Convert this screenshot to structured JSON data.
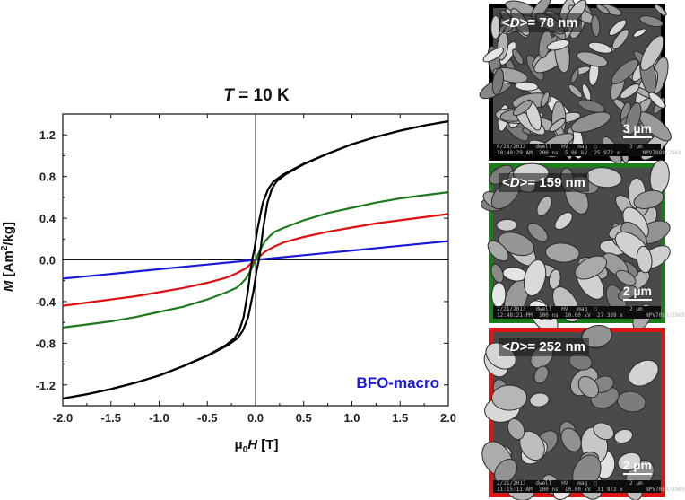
{
  "chart_data": {
    "type": "line",
    "title_symbol": "T",
    "title_rest": " = 10 K",
    "xlabel_prefix": "μ",
    "xlabel_sub": "0",
    "xlabel_symbol": "H",
    "xlabel_unit": " [T]",
    "ylabel_symbol": "M",
    "ylabel_unit_a": " [Am",
    "ylabel_sup": "2",
    "ylabel_unit_b": "/kg]",
    "xlim": [
      -2.0,
      2.0
    ],
    "ylim": [
      -1.4,
      1.4
    ],
    "xticks": [
      "-2.0",
      "-1.5",
      "-1.0",
      "-0.5",
      "0.0",
      "0.5",
      "1.0",
      "1.5",
      "2.0"
    ],
    "yticks": [
      "-1.2",
      "-0.8",
      "-0.4",
      "0.0",
      "0.4",
      "0.8",
      "1.2"
    ],
    "annotation": "BFO-macro",
    "series": [
      {
        "name": "<D> = 78 nm",
        "color": "#000000",
        "hysteresis": true,
        "x": [
          0.0,
          0.02,
          0.05,
          0.1,
          0.15,
          0.2,
          0.3,
          0.5,
          0.75,
          1.0,
          1.25,
          1.5,
          1.75,
          2.0
        ],
        "y": [
          0.0,
          0.1,
          0.3,
          0.55,
          0.68,
          0.75,
          0.82,
          0.92,
          1.02,
          1.11,
          1.18,
          1.24,
          1.29,
          1.33
        ]
      },
      {
        "name": "<D> = 159 nm",
        "color": "#1f7a1f",
        "hysteresis": false,
        "x": [
          0.0,
          0.02,
          0.05,
          0.1,
          0.15,
          0.2,
          0.3,
          0.5,
          0.75,
          1.0,
          1.25,
          1.5,
          1.75,
          2.0
        ],
        "y": [
          0.0,
          0.04,
          0.1,
          0.18,
          0.23,
          0.27,
          0.31,
          0.38,
          0.45,
          0.5,
          0.55,
          0.59,
          0.62,
          0.65
        ]
      },
      {
        "name": "<D> = 252 nm",
        "color": "#e01010",
        "hysteresis": false,
        "x": [
          0.0,
          0.05,
          0.1,
          0.2,
          0.3,
          0.5,
          0.75,
          1.0,
          1.25,
          1.5,
          1.75,
          2.0
        ],
        "y": [
          0.0,
          0.04,
          0.08,
          0.13,
          0.17,
          0.22,
          0.27,
          0.31,
          0.35,
          0.38,
          0.41,
          0.44
        ]
      },
      {
        "name": "BFO-macro",
        "color": "#1a1adb",
        "hysteresis": false,
        "x": [
          0.0,
          0.5,
          1.0,
          1.5,
          2.0
        ],
        "y": [
          0.0,
          0.045,
          0.09,
          0.135,
          0.18
        ]
      }
    ]
  },
  "sem_images": [
    {
      "label_prefix": "<",
      "label_var": "D",
      "label_suffix": ">= 78 nm",
      "scale": "3 µm",
      "border": "#000000",
      "footer": "6/26/2013   dwell   HV   mag  ▢          3 µm\n10:48:29 AM  200 ns  5.00 kV  25 972 x       NPV7089/2969"
    },
    {
      "label_prefix": "<",
      "label_var": "D",
      "label_suffix": ">= 159 nm",
      "scale": "2 µm",
      "border": "#1a7d1a",
      "footer": "2/21/2013   dwell   HV   mag  ▢          2 µm\n12:48:21 PM  100 ns  10.00 kV  27 389 x       NPV7089/2969"
    },
    {
      "label_prefix": "<",
      "label_var": "D",
      "label_suffix": ">= 252 nm",
      "scale": "2 µm",
      "border": "#e01414",
      "footer": "2/21/2013   dwell   HV   mag  ▢          2 µm\n11:15:11 AM  100 ns  10.00 kV  31 972 x       NPV7089/2969"
    }
  ]
}
